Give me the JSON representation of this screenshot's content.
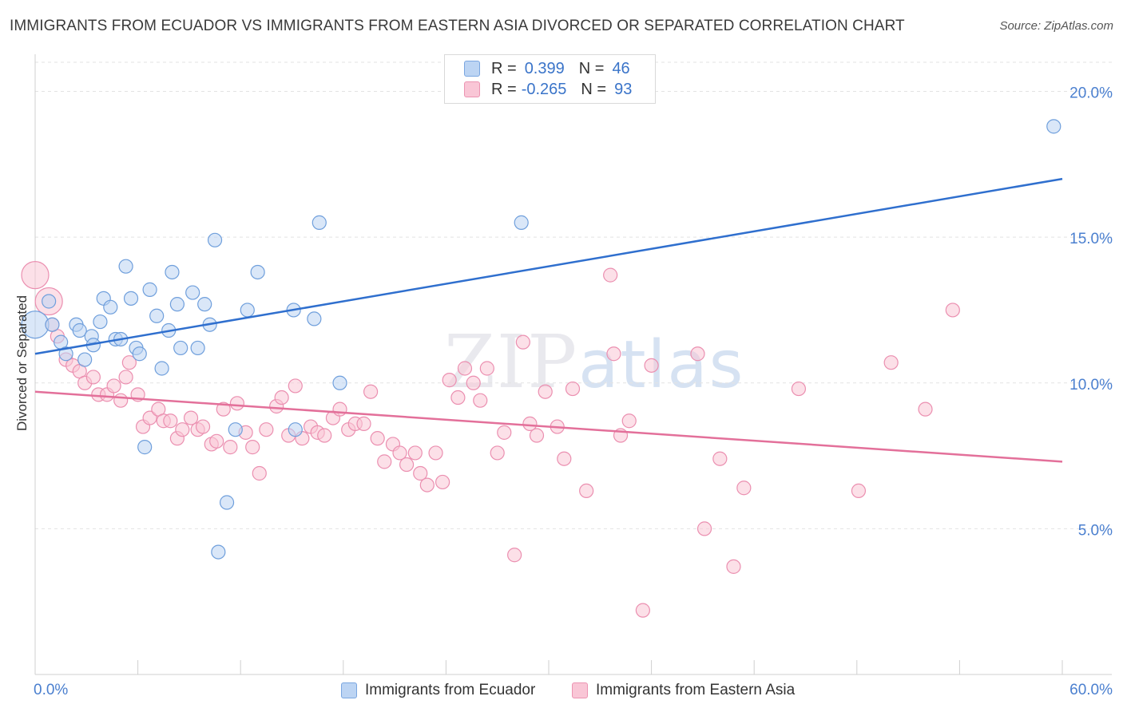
{
  "title": "IMMIGRANTS FROM ECUADOR VS IMMIGRANTS FROM EASTERN ASIA DIVORCED OR SEPARATED CORRELATION CHART",
  "source": "Source: ZipAtlas.com",
  "watermark": {
    "zip": "ZIP",
    "atlas": "atlas"
  },
  "legend": {
    "rows": [
      {
        "r_label": "R =",
        "r_value": "0.399",
        "n_label": "N =",
        "n_value": "46"
      },
      {
        "r_label": "R =",
        "r_value": "-0.265",
        "n_label": "N =",
        "n_value": "93"
      }
    ]
  },
  "colors": {
    "blue_fill": "#bcd4f3",
    "blue_stroke": "#6f9fdc",
    "blue_line": "#2f6fce",
    "pink_fill": "#f9c6d6",
    "pink_stroke": "#eb8fb0",
    "pink_line": "#e3709a",
    "grid": "#e3e3e3",
    "tick_label": "#4a7fcf"
  },
  "chart_data": {
    "type": "scatter",
    "ylabel": "Divorced or Separated",
    "xlim": [
      0,
      60
    ],
    "ylim": [
      0,
      21
    ],
    "x_tick_labels": [
      "0.0%",
      "60.0%"
    ],
    "y_ticks": [
      5,
      10,
      15,
      20
    ],
    "y_tick_labels": [
      "5.0%",
      "10.0%",
      "15.0%",
      "20.0%"
    ],
    "legend_placement": "top-center",
    "series": [
      {
        "name": "Immigrants from Ecuador",
        "trend": {
          "x": [
            0,
            60
          ],
          "y": [
            11.0,
            17.0
          ]
        },
        "points": [
          {
            "x": 0.0,
            "y": 12.0,
            "s": 2
          },
          {
            "x": 0.8,
            "y": 12.8,
            "s": 1
          },
          {
            "x": 1.0,
            "y": 12.0,
            "s": 1
          },
          {
            "x": 1.5,
            "y": 11.4,
            "s": 1
          },
          {
            "x": 1.8,
            "y": 11.0,
            "s": 1
          },
          {
            "x": 2.4,
            "y": 12.0,
            "s": 1
          },
          {
            "x": 2.6,
            "y": 11.8,
            "s": 1
          },
          {
            "x": 2.9,
            "y": 10.8,
            "s": 1
          },
          {
            "x": 3.3,
            "y": 11.6,
            "s": 1
          },
          {
            "x": 3.4,
            "y": 11.3,
            "s": 1
          },
          {
            "x": 3.8,
            "y": 12.1,
            "s": 1
          },
          {
            "x": 4.0,
            "y": 12.9,
            "s": 1
          },
          {
            "x": 4.4,
            "y": 12.6,
            "s": 1
          },
          {
            "x": 4.7,
            "y": 11.5,
            "s": 1
          },
          {
            "x": 5.0,
            "y": 11.5,
            "s": 1
          },
          {
            "x": 5.3,
            "y": 14.0,
            "s": 1
          },
          {
            "x": 5.6,
            "y": 12.9,
            "s": 1
          },
          {
            "x": 5.9,
            "y": 11.2,
            "s": 1
          },
          {
            "x": 6.1,
            "y": 11.0,
            "s": 1
          },
          {
            "x": 6.4,
            "y": 7.8,
            "s": 1
          },
          {
            "x": 6.7,
            "y": 13.2,
            "s": 1
          },
          {
            "x": 7.1,
            "y": 12.3,
            "s": 1
          },
          {
            "x": 7.4,
            "y": 10.5,
            "s": 1
          },
          {
            "x": 7.8,
            "y": 11.8,
            "s": 1
          },
          {
            "x": 8.0,
            "y": 13.8,
            "s": 1
          },
          {
            "x": 8.3,
            "y": 12.7,
            "s": 1
          },
          {
            "x": 8.5,
            "y": 11.2,
            "s": 1
          },
          {
            "x": 9.2,
            "y": 13.1,
            "s": 1
          },
          {
            "x": 9.5,
            "y": 11.2,
            "s": 1
          },
          {
            "x": 9.9,
            "y": 12.7,
            "s": 1
          },
          {
            "x": 10.2,
            "y": 12.0,
            "s": 1
          },
          {
            "x": 10.5,
            "y": 14.9,
            "s": 1
          },
          {
            "x": 10.7,
            "y": 4.2,
            "s": 1
          },
          {
            "x": 11.2,
            "y": 5.9,
            "s": 1
          },
          {
            "x": 11.7,
            "y": 8.4,
            "s": 1
          },
          {
            "x": 12.4,
            "y": 12.5,
            "s": 1
          },
          {
            "x": 13.0,
            "y": 13.8,
            "s": 1
          },
          {
            "x": 15.1,
            "y": 12.5,
            "s": 1
          },
          {
            "x": 15.2,
            "y": 8.4,
            "s": 1
          },
          {
            "x": 16.3,
            "y": 12.2,
            "s": 1
          },
          {
            "x": 16.6,
            "y": 15.5,
            "s": 1
          },
          {
            "x": 17.8,
            "y": 10.0,
            "s": 1
          },
          {
            "x": 28.4,
            "y": 15.5,
            "s": 1
          },
          {
            "x": 59.5,
            "y": 18.8,
            "s": 1
          }
        ]
      },
      {
        "name": "Immigrants from Eastern Asia",
        "trend": {
          "x": [
            0,
            60
          ],
          "y": [
            9.7,
            7.3
          ]
        },
        "points": [
          {
            "x": 0.0,
            "y": 13.7,
            "s": 2
          },
          {
            "x": 0.8,
            "y": 12.8,
            "s": 2
          },
          {
            "x": 1.0,
            "y": 12.0,
            "s": 1
          },
          {
            "x": 1.3,
            "y": 11.6,
            "s": 1
          },
          {
            "x": 1.8,
            "y": 10.8,
            "s": 1
          },
          {
            "x": 2.2,
            "y": 10.6,
            "s": 1
          },
          {
            "x": 2.6,
            "y": 10.4,
            "s": 1
          },
          {
            "x": 2.9,
            "y": 10.0,
            "s": 1
          },
          {
            "x": 3.4,
            "y": 10.2,
            "s": 1
          },
          {
            "x": 3.7,
            "y": 9.6,
            "s": 1
          },
          {
            "x": 4.2,
            "y": 9.6,
            "s": 1
          },
          {
            "x": 4.6,
            "y": 9.9,
            "s": 1
          },
          {
            "x": 5.0,
            "y": 9.4,
            "s": 1
          },
          {
            "x": 5.3,
            "y": 10.2,
            "s": 1
          },
          {
            "x": 5.5,
            "y": 10.7,
            "s": 1
          },
          {
            "x": 6.0,
            "y": 9.6,
            "s": 1
          },
          {
            "x": 6.3,
            "y": 8.5,
            "s": 1
          },
          {
            "x": 6.7,
            "y": 8.8,
            "s": 1
          },
          {
            "x": 7.2,
            "y": 9.1,
            "s": 1
          },
          {
            "x": 7.5,
            "y": 8.7,
            "s": 1
          },
          {
            "x": 7.9,
            "y": 8.7,
            "s": 1
          },
          {
            "x": 8.3,
            "y": 8.1,
            "s": 1
          },
          {
            "x": 8.6,
            "y": 8.4,
            "s": 1
          },
          {
            "x": 9.1,
            "y": 8.8,
            "s": 1
          },
          {
            "x": 9.5,
            "y": 8.4,
            "s": 1
          },
          {
            "x": 9.8,
            "y": 8.5,
            "s": 1
          },
          {
            "x": 10.3,
            "y": 7.9,
            "s": 1
          },
          {
            "x": 10.6,
            "y": 8.0,
            "s": 1
          },
          {
            "x": 11.0,
            "y": 9.1,
            "s": 1
          },
          {
            "x": 11.4,
            "y": 7.8,
            "s": 1
          },
          {
            "x": 11.8,
            "y": 9.3,
            "s": 1
          },
          {
            "x": 12.3,
            "y": 8.3,
            "s": 1
          },
          {
            "x": 12.7,
            "y": 7.8,
            "s": 1
          },
          {
            "x": 13.1,
            "y": 6.9,
            "s": 1
          },
          {
            "x": 13.5,
            "y": 8.4,
            "s": 1
          },
          {
            "x": 14.1,
            "y": 9.2,
            "s": 1
          },
          {
            "x": 14.4,
            "y": 9.5,
            "s": 1
          },
          {
            "x": 14.8,
            "y": 8.2,
            "s": 1
          },
          {
            "x": 15.2,
            "y": 9.9,
            "s": 1
          },
          {
            "x": 15.6,
            "y": 8.1,
            "s": 1
          },
          {
            "x": 16.1,
            "y": 8.5,
            "s": 1
          },
          {
            "x": 16.5,
            "y": 8.3,
            "s": 1
          },
          {
            "x": 16.9,
            "y": 8.2,
            "s": 1
          },
          {
            "x": 17.4,
            "y": 8.8,
            "s": 1
          },
          {
            "x": 17.8,
            "y": 9.1,
            "s": 1
          },
          {
            "x": 18.3,
            "y": 8.4,
            "s": 1
          },
          {
            "x": 18.7,
            "y": 8.6,
            "s": 1
          },
          {
            "x": 19.2,
            "y": 8.6,
            "s": 1
          },
          {
            "x": 19.6,
            "y": 9.7,
            "s": 1
          },
          {
            "x": 20.0,
            "y": 8.1,
            "s": 1
          },
          {
            "x": 20.4,
            "y": 7.3,
            "s": 1
          },
          {
            "x": 20.9,
            "y": 7.9,
            "s": 1
          },
          {
            "x": 21.3,
            "y": 7.6,
            "s": 1
          },
          {
            "x": 21.7,
            "y": 7.2,
            "s": 1
          },
          {
            "x": 22.2,
            "y": 7.6,
            "s": 1
          },
          {
            "x": 22.5,
            "y": 6.9,
            "s": 1
          },
          {
            "x": 22.9,
            "y": 6.5,
            "s": 1
          },
          {
            "x": 23.4,
            "y": 7.6,
            "s": 1
          },
          {
            "x": 23.8,
            "y": 6.6,
            "s": 1
          },
          {
            "x": 24.2,
            "y": 10.1,
            "s": 1
          },
          {
            "x": 24.7,
            "y": 9.5,
            "s": 1
          },
          {
            "x": 25.1,
            "y": 10.5,
            "s": 1
          },
          {
            "x": 25.6,
            "y": 10.0,
            "s": 1
          },
          {
            "x": 26.0,
            "y": 9.4,
            "s": 1
          },
          {
            "x": 26.4,
            "y": 10.5,
            "s": 1
          },
          {
            "x": 27.0,
            "y": 7.6,
            "s": 1
          },
          {
            "x": 27.4,
            "y": 8.3,
            "s": 1
          },
          {
            "x": 28.0,
            "y": 4.1,
            "s": 1
          },
          {
            "x": 28.5,
            "y": 11.4,
            "s": 1
          },
          {
            "x": 28.9,
            "y": 8.6,
            "s": 1
          },
          {
            "x": 29.3,
            "y": 8.2,
            "s": 1
          },
          {
            "x": 29.8,
            "y": 9.7,
            "s": 1
          },
          {
            "x": 30.5,
            "y": 8.5,
            "s": 1
          },
          {
            "x": 30.9,
            "y": 7.4,
            "s": 1
          },
          {
            "x": 31.4,
            "y": 9.8,
            "s": 1
          },
          {
            "x": 32.2,
            "y": 6.3,
            "s": 1
          },
          {
            "x": 33.6,
            "y": 13.7,
            "s": 1
          },
          {
            "x": 33.8,
            "y": 11.0,
            "s": 1
          },
          {
            "x": 34.2,
            "y": 8.2,
            "s": 1
          },
          {
            "x": 34.7,
            "y": 8.7,
            "s": 1
          },
          {
            "x": 35.5,
            "y": 2.2,
            "s": 1
          },
          {
            "x": 36.0,
            "y": 10.6,
            "s": 1
          },
          {
            "x": 38.7,
            "y": 11.0,
            "s": 1
          },
          {
            "x": 39.1,
            "y": 5.0,
            "s": 1
          },
          {
            "x": 40.0,
            "y": 7.4,
            "s": 1
          },
          {
            "x": 40.8,
            "y": 3.7,
            "s": 1
          },
          {
            "x": 41.4,
            "y": 6.4,
            "s": 1
          },
          {
            "x": 44.6,
            "y": 9.8,
            "s": 1
          },
          {
            "x": 48.1,
            "y": 6.3,
            "s": 1
          },
          {
            "x": 50.0,
            "y": 10.7,
            "s": 1
          },
          {
            "x": 52.0,
            "y": 9.1,
            "s": 1
          },
          {
            "x": 53.6,
            "y": 12.5,
            "s": 1
          }
        ]
      }
    ]
  }
}
